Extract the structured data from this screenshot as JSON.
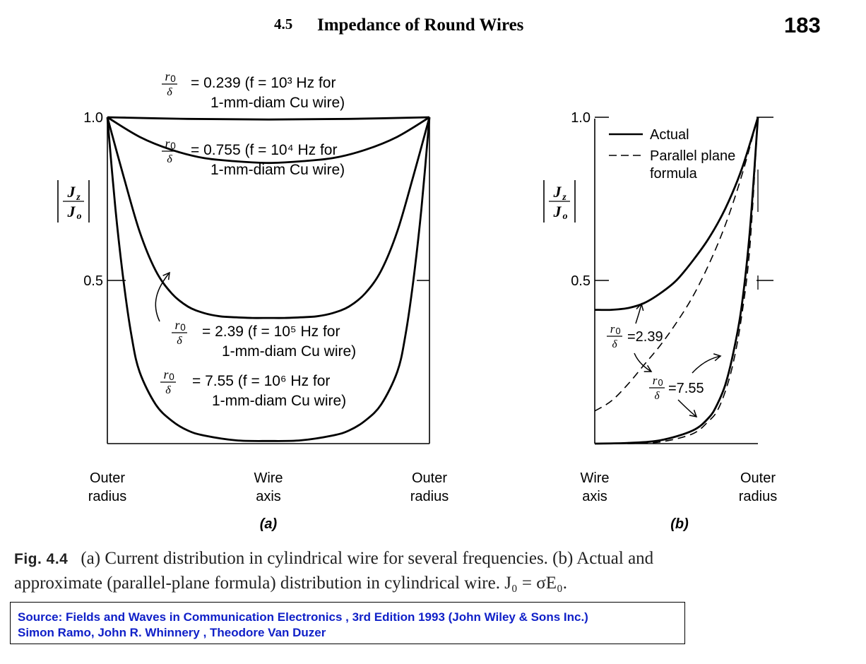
{
  "header": {
    "section_number": "4.5",
    "section_title": "Impedance of Round Wires",
    "page_number": "183"
  },
  "caption": {
    "figure_label": "Fig. 4.4",
    "line1": "(a) Current distribution in cylindrical wire for several frequencies. (b) Actual and",
    "line2": "approximate (parallel-plane formula) distribution in cylindrical wire. J₀ = σE₀."
  },
  "source": {
    "line1": "Source: Fields and Waves in Communication Electronics , 3rd Edition 1993 (John Wiley & Sons Inc.)",
    "line2": "Simon Ramo, John R. Whinnery , Theodore Van Duzer"
  },
  "colors": {
    "ink": "#000000",
    "source_text": "#1020c8"
  },
  "chart_data": [
    {
      "id": "a",
      "type": "line",
      "panel_label": "(a)",
      "ylabel": "|Jz/Jo|",
      "ytick_labels": [
        "1.0",
        "0.5"
      ],
      "yticks": [
        1.0,
        0.5
      ],
      "ylim": [
        0,
        1.0
      ],
      "x_labels": [
        {
          "x": -1,
          "lines": [
            "Outer",
            "radius"
          ]
        },
        {
          "x": 0,
          "lines": [
            "Wire",
            "axis"
          ]
        },
        {
          "x": 1,
          "lines": [
            "Outer",
            "radius"
          ]
        }
      ],
      "xlim": [
        -1,
        1
      ],
      "series": [
        {
          "id": "r0239",
          "label": {
            "ratio": "0.239",
            "freq": "10³",
            "line1": "= 0.239 (f = 10³ Hz for",
            "line2": "1-mm-diam Cu wire)"
          },
          "x": [
            -1,
            -0.5,
            0,
            0.5,
            1
          ],
          "y": [
            1.0,
            0.995,
            0.993,
            0.995,
            1.0
          ]
        },
        {
          "id": "r0755",
          "label": {
            "ratio": "0.755",
            "freq": "10⁴",
            "line1": "= 0.755 (f = 10⁴ Hz for",
            "line2": "1-mm-diam Cu wire)"
          },
          "x": [
            -1,
            -0.8,
            -0.6,
            -0.4,
            -0.2,
            0,
            0.2,
            0.4,
            0.6,
            0.8,
            1
          ],
          "y": [
            1.0,
            0.94,
            0.9,
            0.875,
            0.865,
            0.86,
            0.865,
            0.875,
            0.9,
            0.94,
            1.0
          ]
        },
        {
          "id": "r239",
          "label": {
            "ratio": "2.39",
            "freq": "10⁵",
            "line1": "= 2.39 (f = 10⁵ Hz for",
            "line2": "1-mm-diam Cu wire)"
          },
          "x": [
            -1,
            -0.9,
            -0.8,
            -0.7,
            -0.6,
            -0.5,
            -0.4,
            -0.3,
            -0.2,
            -0.1,
            0,
            0.1,
            0.2,
            0.3,
            0.4,
            0.5,
            0.6,
            0.7,
            0.8,
            0.9,
            1
          ],
          "y": [
            1.0,
            0.82,
            0.65,
            0.53,
            0.46,
            0.42,
            0.4,
            0.39,
            0.387,
            0.385,
            0.385,
            0.385,
            0.387,
            0.39,
            0.4,
            0.42,
            0.46,
            0.53,
            0.65,
            0.82,
            1.0
          ]
        },
        {
          "id": "r755",
          "label": {
            "ratio": "7.55",
            "freq": "10⁶",
            "line1": "= 7.55 (f = 10⁶ Hz for",
            "line2": "1-mm-diam Cu wire)"
          },
          "x": [
            -1,
            -0.95,
            -0.9,
            -0.85,
            -0.8,
            -0.7,
            -0.6,
            -0.5,
            -0.4,
            -0.2,
            0,
            0.2,
            0.4,
            0.5,
            0.6,
            0.7,
            0.8,
            0.85,
            0.9,
            0.95,
            1
          ],
          "y": [
            1.0,
            0.72,
            0.5,
            0.33,
            0.22,
            0.12,
            0.07,
            0.04,
            0.025,
            0.01,
            0.008,
            0.01,
            0.025,
            0.04,
            0.07,
            0.12,
            0.22,
            0.33,
            0.5,
            0.72,
            1.0
          ]
        }
      ]
    },
    {
      "id": "b",
      "type": "line",
      "panel_label": "(b)",
      "ylabel": "|Jz/Jo|",
      "ytick_labels": [
        "1.0",
        "0.5"
      ],
      "yticks": [
        1.0,
        0.5
      ],
      "ylim": [
        0,
        1.0
      ],
      "x_labels": [
        {
          "x": 0,
          "lines": [
            "Wire",
            "axis"
          ]
        },
        {
          "x": 1,
          "lines": [
            "Outer",
            "radius"
          ]
        }
      ],
      "xlim": [
        0,
        1
      ],
      "legend": {
        "position": "top-left",
        "entries": [
          {
            "style": "solid",
            "label_lines": [
              "Actual"
            ]
          },
          {
            "style": "dashed",
            "label_lines": [
              "Parallel plane",
              "formula"
            ]
          }
        ]
      },
      "annotations": [
        {
          "ratio": "2.39",
          "text": "=2.39"
        },
        {
          "ratio": "7.55",
          "text": "=7.55"
        }
      ],
      "series": [
        {
          "id": "actual_239",
          "style": "solid",
          "ratio": "2.39",
          "x": [
            0,
            0.1,
            0.2,
            0.3,
            0.4,
            0.5,
            0.6,
            0.7,
            0.8,
            0.9,
            1.0
          ],
          "y": [
            0.41,
            0.41,
            0.415,
            0.43,
            0.46,
            0.5,
            0.56,
            0.63,
            0.72,
            0.84,
            1.0
          ]
        },
        {
          "id": "approx_239",
          "style": "dashed",
          "ratio": "2.39",
          "x": [
            0,
            0.1,
            0.2,
            0.3,
            0.4,
            0.5,
            0.6,
            0.7,
            0.8,
            0.9,
            1.0
          ],
          "y": [
            0.1,
            0.13,
            0.18,
            0.24,
            0.3,
            0.37,
            0.45,
            0.55,
            0.67,
            0.82,
            1.0
          ]
        },
        {
          "id": "actual_755",
          "style": "solid",
          "ratio": "7.55",
          "x": [
            0,
            0.2,
            0.4,
            0.6,
            0.7,
            0.75,
            0.8,
            0.85,
            0.9,
            0.95,
            1.0
          ],
          "y": [
            0.0,
            0.002,
            0.01,
            0.04,
            0.08,
            0.12,
            0.18,
            0.28,
            0.42,
            0.65,
            1.0
          ]
        },
        {
          "id": "approx_755",
          "style": "dashed",
          "ratio": "7.55",
          "x": [
            0.2,
            0.4,
            0.6,
            0.7,
            0.75,
            0.8,
            0.85,
            0.9,
            0.95,
            1.0
          ],
          "y": [
            0.0,
            0.005,
            0.03,
            0.07,
            0.1,
            0.16,
            0.25,
            0.39,
            0.6,
            1.0
          ]
        }
      ]
    }
  ]
}
